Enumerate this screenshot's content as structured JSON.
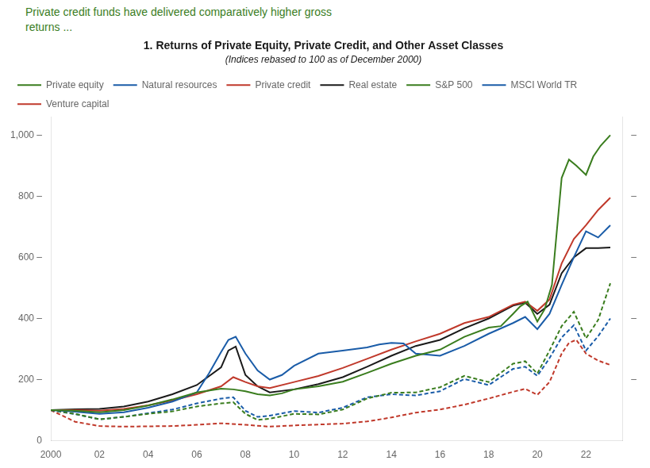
{
  "chart_data": {
    "type": "line",
    "title": "1. Returns of Private Equity, Private Credit, and Other Asset Classes",
    "subtitle": "(Indices rebased to 100 as of December 2000)",
    "annotations": [
      {
        "text": "Private credit funds have delivered comparatively higher gross\nreturns ...",
        "color": "#3a7d1e"
      }
    ],
    "xlim": [
      2000,
      2023.5
    ],
    "xticks": [
      2000,
      {
        "value": 2002,
        "label": "02"
      },
      {
        "value": 2004,
        "label": "04"
      },
      {
        "value": 2006,
        "label": "06"
      },
      {
        "value": 2008,
        "label": "08"
      },
      {
        "value": 2010,
        "label": "10"
      },
      {
        "value": 2012,
        "label": "12"
      },
      {
        "value": 2014,
        "label": "14"
      },
      {
        "value": 2016,
        "label": "16"
      },
      {
        "value": 2018,
        "label": "18"
      },
      {
        "value": 2020,
        "label": "20"
      },
      {
        "value": 2022,
        "label": "22"
      }
    ],
    "ylim": [
      0,
      1060
    ],
    "yticks": [
      0,
      {
        "value": 200,
        "label": "200 –"
      },
      {
        "value": 400,
        "label": "400 –"
      },
      {
        "value": 600,
        "label": "600 –"
      },
      {
        "value": 800,
        "label": "800 –"
      },
      {
        "value": 1000,
        "label": "1,000 –"
      }
    ],
    "y2lim": [
      0,
      1060
    ],
    "y2ticks": [
      {
        "value": 200,
        "label": "–"
      },
      {
        "value": 400,
        "label": "–"
      },
      {
        "value": 600,
        "label": "–"
      },
      {
        "value": 800,
        "label": "–"
      },
      {
        "value": 1000,
        "label": "–"
      }
    ],
    "grid": false,
    "legend": "upper left",
    "series": [
      {
        "name": "Private equity",
        "color": "#3a7d1e",
        "line_style": "solid",
        "x": [
          2000,
          2001,
          2002,
          2003,
          2004,
          2005,
          2006,
          2007,
          2007.5,
          2008,
          2008.5,
          2009,
          2009.5,
          2010,
          2011,
          2012,
          2013,
          2014,
          2015,
          2016,
          2017,
          2018,
          2018.5,
          2019,
          2019.3,
          2019.6,
          2020.0,
          2020.3,
          2020.6,
          2021.0,
          2021.3,
          2021.6,
          2022.0,
          2022.3,
          2022.6,
          2023.0
        ],
        "values": [
          100,
          98,
          93,
          100,
          115,
          135,
          158,
          170,
          168,
          162,
          152,
          148,
          155,
          168,
          178,
          193,
          222,
          252,
          278,
          298,
          340,
          370,
          375,
          415,
          440,
          455,
          390,
          430,
          510,
          860,
          920,
          900,
          870,
          930,
          965,
          1000
        ]
      },
      {
        "name": "Natural resources",
        "color": "#1a5ca8",
        "line_style": "solid",
        "x": [
          2000,
          2001,
          2002,
          2003,
          2004,
          2005,
          2006,
          2006.5,
          2007,
          2007.3,
          2007.6,
          2008,
          2008.5,
          2009,
          2009.5,
          2010,
          2011,
          2012,
          2013,
          2013.5,
          2014,
          2014.5,
          2015,
          2016,
          2017,
          2018,
          2019,
          2019.5,
          2020,
          2020.5,
          2021,
          2021.5,
          2022,
          2022.5,
          2023.0
        ],
        "values": [
          100,
          95,
          88,
          93,
          108,
          128,
          158,
          220,
          290,
          330,
          340,
          285,
          230,
          200,
          215,
          245,
          285,
          295,
          305,
          315,
          320,
          318,
          285,
          278,
          310,
          350,
          385,
          405,
          365,
          415,
          510,
          600,
          685,
          665,
          705
        ]
      },
      {
        "name": "Private credit",
        "color": "#c0392b",
        "line_style": "solid",
        "x": [
          2000,
          2001,
          2002,
          2003,
          2004,
          2005,
          2006,
          2007,
          2007.5,
          2008,
          2008.5,
          2009,
          2010,
          2011,
          2012,
          2013,
          2014,
          2015,
          2016,
          2017,
          2018,
          2019,
          2019.5,
          2020,
          2020.5,
          2021,
          2021.5,
          2022,
          2022.5,
          2023.0
        ],
        "values": [
          100,
          100,
          98,
          104,
          116,
          132,
          152,
          178,
          208,
          192,
          178,
          172,
          192,
          212,
          238,
          268,
          298,
          325,
          350,
          385,
          405,
          445,
          455,
          425,
          462,
          580,
          660,
          705,
          755,
          795
        ]
      },
      {
        "name": "Real estate",
        "color": "#1a1a1a",
        "line_style": "solid",
        "x": [
          2000,
          2001,
          2002,
          2003,
          2004,
          2005,
          2006,
          2007,
          2007.3,
          2007.6,
          2008,
          2008.5,
          2009,
          2010,
          2011,
          2012,
          2013,
          2014,
          2015,
          2016,
          2017,
          2018,
          2019,
          2019.5,
          2020,
          2020.5,
          2021,
          2021.5,
          2022,
          2022.5,
          2023.0
        ],
        "values": [
          100,
          103,
          104,
          112,
          128,
          152,
          182,
          240,
          295,
          308,
          215,
          178,
          158,
          168,
          185,
          208,
          242,
          278,
          310,
          330,
          368,
          400,
          442,
          452,
          415,
          445,
          548,
          600,
          630,
          630,
          632
        ]
      },
      {
        "name": "S&P 500",
        "color": "#3a7d1e",
        "line_style": "dashed",
        "x": [
          2000,
          2001,
          2002,
          2003,
          2004,
          2005,
          2006,
          2007,
          2007.5,
          2008,
          2008.5,
          2009,
          2010,
          2011,
          2012,
          2013,
          2014,
          2015,
          2016,
          2017,
          2018,
          2019,
          2019.5,
          2020,
          2020.5,
          2021,
          2021.5,
          2022,
          2022.5,
          2023.0
        ],
        "values": [
          100,
          88,
          70,
          78,
          88,
          96,
          112,
          122,
          126,
          88,
          68,
          72,
          88,
          86,
          102,
          138,
          157,
          158,
          175,
          212,
          192,
          252,
          260,
          220,
          295,
          375,
          422,
          335,
          395,
          515
        ]
      },
      {
        "name": "MSCI World TR",
        "color": "#1a5ca8",
        "line_style": "dashed",
        "x": [
          2000,
          2001,
          2002,
          2003,
          2004,
          2005,
          2006,
          2007,
          2007.5,
          2008,
          2008.5,
          2009,
          2010,
          2011,
          2012,
          2013,
          2014,
          2015,
          2016,
          2017,
          2018,
          2019,
          2019.5,
          2020,
          2020.5,
          2021,
          2021.5,
          2022,
          2022.5,
          2023.0
        ],
        "values": [
          100,
          87,
          70,
          78,
          90,
          102,
          122,
          138,
          142,
          98,
          78,
          82,
          97,
          92,
          108,
          142,
          152,
          148,
          162,
          202,
          182,
          235,
          242,
          212,
          270,
          338,
          378,
          295,
          342,
          400
        ]
      },
      {
        "name": "Venture capital",
        "color": "#c0392b",
        "line_style": "dashed",
        "x": [
          2000,
          2001,
          2002,
          2003,
          2004,
          2005,
          2006,
          2007,
          2008,
          2009,
          2010,
          2011,
          2012,
          2013,
          2014,
          2015,
          2016,
          2017,
          2018,
          2019,
          2019.5,
          2020,
          2020.5,
          2021,
          2021.3,
          2021.6,
          2022,
          2022.5,
          2023.0
        ],
        "values": [
          100,
          62,
          48,
          46,
          47,
          48,
          52,
          57,
          52,
          46,
          50,
          53,
          56,
          63,
          76,
          92,
          102,
          118,
          138,
          160,
          170,
          150,
          192,
          285,
          320,
          330,
          285,
          262,
          248
        ]
      }
    ]
  }
}
